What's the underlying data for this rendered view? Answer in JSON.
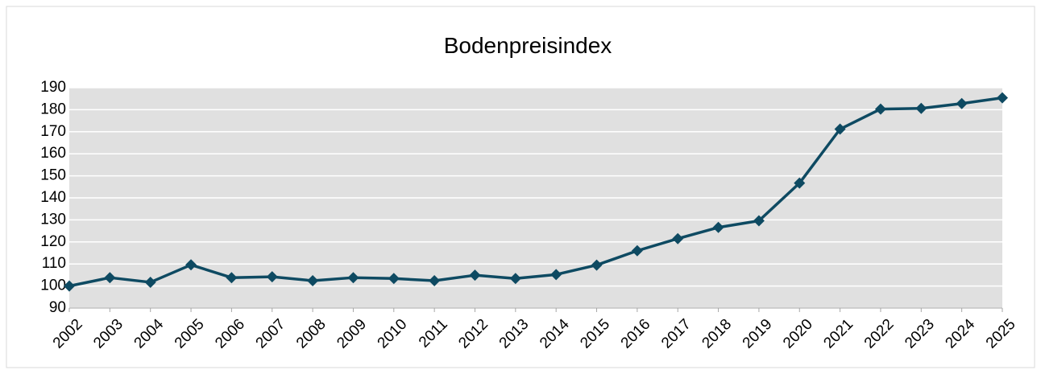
{
  "chart_data": {
    "type": "line",
    "title": "Bodenpreisindex",
    "categories": [
      "2002",
      "2003",
      "2004",
      "2005",
      "2006",
      "2007",
      "2008",
      "2009",
      "2010",
      "2011",
      "2012",
      "2013",
      "2014",
      "2015",
      "2016",
      "2017",
      "2018",
      "2019",
      "2020",
      "2021",
      "2022",
      "2023",
      "2024",
      "2025"
    ],
    "series": [
      {
        "name": "Bodenpreisindex",
        "color": "#0e4a62",
        "values": [
          100,
          103.8,
          101.7,
          109.6,
          103.8,
          104.2,
          102.4,
          103.8,
          103.4,
          102.4,
          104.9,
          103.4,
          105.2,
          109.5,
          116,
          121.5,
          126.6,
          129.6,
          146.7,
          171.2,
          180.3,
          180.6,
          182.8,
          185.4
        ]
      }
    ],
    "ylim": [
      90,
      190
    ],
    "yticks": [
      90,
      100,
      110,
      120,
      130,
      140,
      150,
      160,
      170,
      180,
      190
    ],
    "grid": true
  }
}
